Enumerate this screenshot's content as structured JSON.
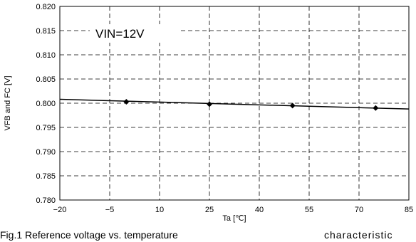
{
  "chart_data": {
    "type": "line",
    "title": "",
    "annotation": "VIN=12V",
    "xlabel": "Ta [℃]",
    "ylabel": "VFB and FC [V]",
    "xlim": [
      -20,
      85
    ],
    "ylim": [
      0.78,
      0.82
    ],
    "x_ticks": [
      -20,
      -5,
      10,
      25,
      40,
      55,
      70,
      85
    ],
    "x_tick_labels": [
      "−20",
      "−5",
      "10",
      "25",
      "40",
      "55",
      "70",
      "85"
    ],
    "y_ticks": [
      0.78,
      0.785,
      0.79,
      0.795,
      0.8,
      0.805,
      0.81,
      0.815,
      0.82
    ],
    "y_tick_labels": [
      "0.780",
      "0.785",
      "0.790",
      "0.795",
      "0.800",
      "0.805",
      "0.810",
      "0.815",
      "0.820"
    ],
    "grid": true,
    "legend": "none",
    "series": [
      {
        "marker": "diamond",
        "x": [
          0,
          25,
          50,
          75
        ],
        "y": [
          0.8003,
          0.7998,
          0.7995,
          0.799
        ]
      }
    ],
    "trendline": {
      "x": [
        -20,
        85
      ],
      "y": [
        0.8008,
        0.7988
      ]
    }
  },
  "caption": {
    "left": "Fig.1 Reference voltage vs. temperature",
    "right": "characteristic"
  }
}
